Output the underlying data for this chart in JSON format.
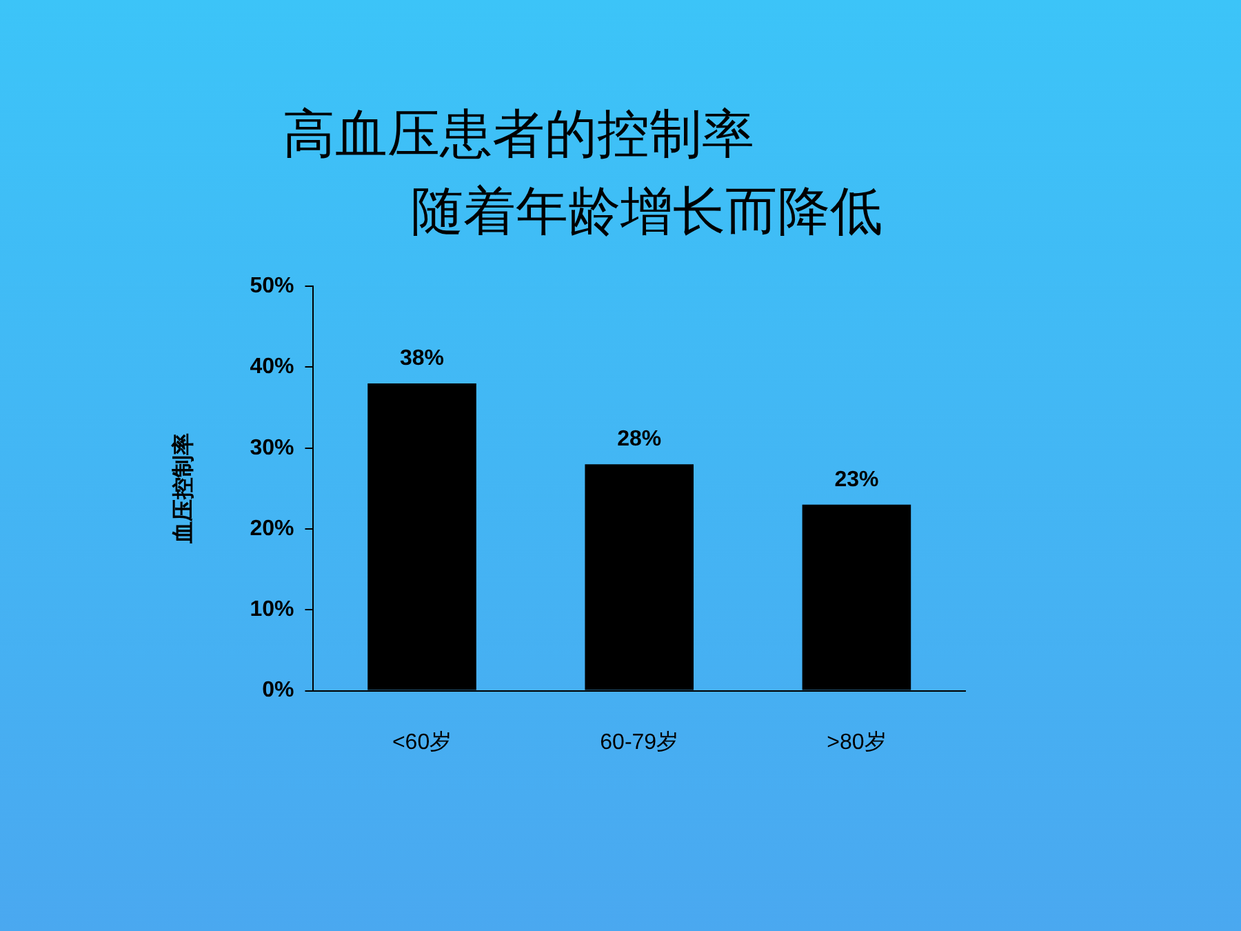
{
  "chart_data": {
    "type": "bar",
    "title": "高血压患者的控制率",
    "subtitle": "随着年龄增长而降低",
    "ylabel": "血压控制率",
    "categories": [
      "<60岁",
      "60-79岁",
      ">80岁"
    ],
    "values": [
      38,
      28,
      23
    ],
    "color": "#000000",
    "value_labels": [
      "38%",
      "28%",
      "23%"
    ],
    "ylim": [
      0,
      50
    ],
    "yticks": [
      {
        "value": 0,
        "label": "0%"
      },
      {
        "value": 10,
        "label": "10%"
      },
      {
        "value": 20,
        "label": "20%"
      },
      {
        "value": 30,
        "label": "30%"
      },
      {
        "value": 40,
        "label": "40%"
      },
      {
        "value": 50,
        "label": "50%"
      }
    ],
    "grid": false,
    "legend": false
  }
}
